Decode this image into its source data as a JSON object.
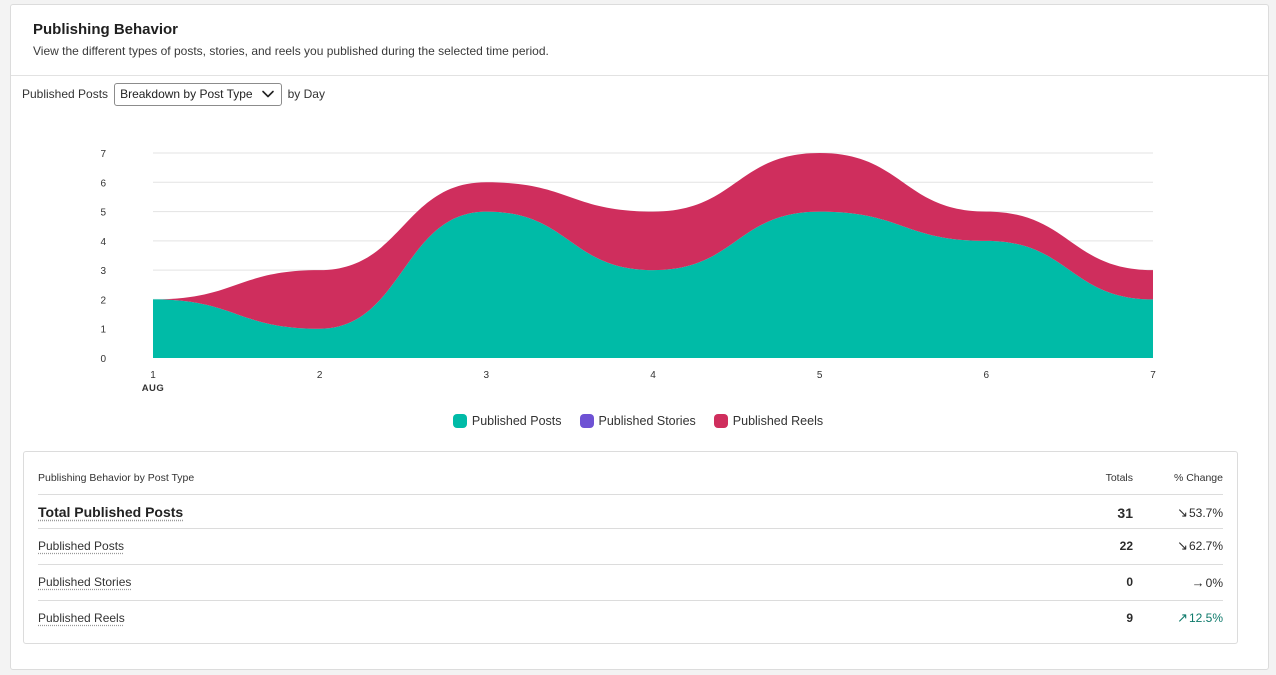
{
  "header": {
    "title": "Publishing Behavior",
    "subtitle": "View the different types of posts, stories, and reels you published during the selected time period."
  },
  "controls": {
    "prefix": "Published Posts",
    "breakdown_selected": "Breakdown by Post Type",
    "suffix": "by Day"
  },
  "chart_data": {
    "type": "area",
    "stacked": true,
    "x": [
      "1",
      "2",
      "3",
      "4",
      "5",
      "6",
      "7"
    ],
    "x_sublabel": "AUG",
    "ylim": [
      0,
      7
    ],
    "yticks": [
      "0",
      "1",
      "2",
      "3",
      "4",
      "5",
      "6",
      "7"
    ],
    "grid": true,
    "legend_position": "bottom",
    "series": [
      {
        "name": "Published Posts",
        "color": "#00bba7",
        "values": [
          2,
          1,
          5,
          3,
          5,
          4,
          2
        ]
      },
      {
        "name": "Published Stories",
        "color": "#6e52d4",
        "values": [
          0,
          0,
          0,
          0,
          0,
          0,
          0
        ]
      },
      {
        "name": "Published Reels",
        "color": "#cf2e5d",
        "values": [
          0,
          2,
          1,
          2,
          2,
          1,
          1
        ]
      }
    ]
  },
  "table": {
    "header_name": "Publishing Behavior by Post Type",
    "header_totals": "Totals",
    "header_change": "% Change",
    "total_row": {
      "label": "Total Published Posts",
      "total": "31",
      "arrow": "↘",
      "change": "53.7%"
    },
    "rows": [
      {
        "label": "Published Posts",
        "total": "22",
        "arrow": "↘",
        "change": "62.7%",
        "trend": "down"
      },
      {
        "label": "Published Stories",
        "total": "0",
        "arrow": "→",
        "change": "0%",
        "trend": "flat"
      },
      {
        "label": "Published Reels",
        "total": "9",
        "arrow": "↗",
        "change": "12.5%",
        "trend": "up"
      }
    ]
  },
  "colors": {
    "positive": "#0e7a6b",
    "border": "#dcdcdc"
  }
}
